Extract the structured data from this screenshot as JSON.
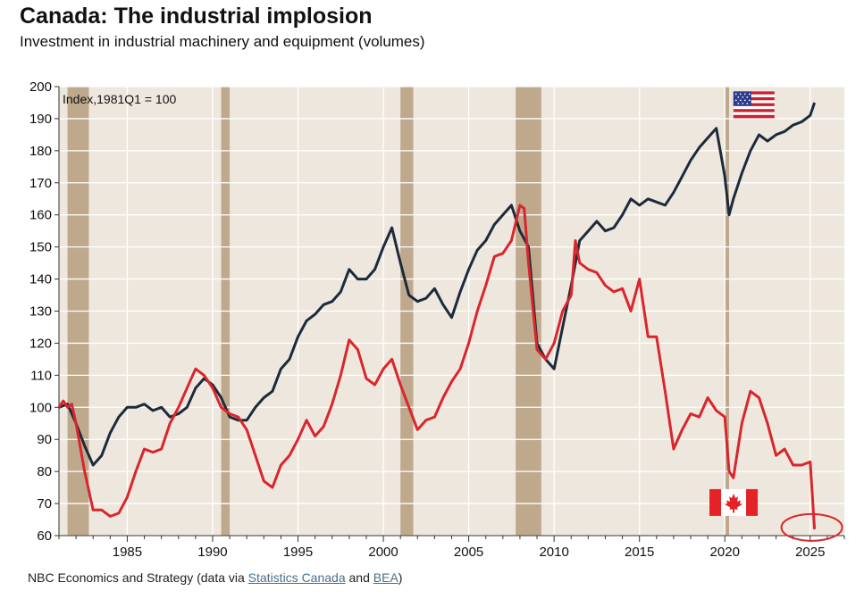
{
  "header": {
    "title": "Canada: The industrial implosion",
    "subtitle": "Investment in industrial machinery and equipment (volumes)"
  },
  "source": {
    "prefix": "NBC Economics and Strategy (data via ",
    "link1": "Statistics Canada",
    "middle": " and ",
    "link2": "BEA",
    "suffix": ")"
  },
  "colors": {
    "plot_background": "#eee7de",
    "recession_band": "#bfa98d",
    "grid": "#ffffff",
    "us_line": "#1d2a3a",
    "canada_line": "#d9262c",
    "highlight_circle": "#d9262c"
  },
  "icons": {
    "us": "us-flag-icon",
    "canada": "canada-flag-icon"
  },
  "chart_data": {
    "type": "line",
    "index_label": "Index,1981Q1 = 100",
    "xlabel": "",
    "ylabel": "",
    "xlim": [
      1981,
      2027
    ],
    "ylim": [
      60,
      200
    ],
    "x_ticks": [
      "1985",
      "1990",
      "1995",
      "2000",
      "2005",
      "2010",
      "2015",
      "2020",
      "2025"
    ],
    "y_ticks": [
      "60",
      "70",
      "80",
      "90",
      "100",
      "110",
      "120",
      "130",
      "140",
      "150",
      "160",
      "170",
      "180",
      "190",
      "200"
    ],
    "grid": true,
    "legend": "flags next to series (US top-right, Canada bottom-right)",
    "recessions": [
      [
        1981.5,
        1982.75
      ],
      [
        1990.5,
        1991.0
      ],
      [
        2001.0,
        2001.75
      ],
      [
        2007.75,
        2009.25
      ],
      [
        2020.0,
        2020.25
      ]
    ],
    "series": [
      {
        "id": "us",
        "x": [
          1981.0,
          1981.5,
          1982.0,
          1982.5,
          1983.0,
          1983.5,
          1984.0,
          1984.5,
          1985.0,
          1985.5,
          1986.0,
          1986.5,
          1987.0,
          1987.5,
          1988.0,
          1988.5,
          1989.0,
          1989.5,
          1990.0,
          1990.5,
          1991.0,
          1991.5,
          1992.0,
          1992.5,
          1993.0,
          1993.5,
          1994.0,
          1994.5,
          1995.0,
          1995.5,
          1996.0,
          1996.5,
          1997.0,
          1997.5,
          1998.0,
          1998.5,
          1999.0,
          1999.5,
          2000.0,
          2000.5,
          2001.0,
          2001.5,
          2002.0,
          2002.5,
          2003.0,
          2003.5,
          2004.0,
          2004.5,
          2005.0,
          2005.5,
          2006.0,
          2006.5,
          2007.0,
          2007.5,
          2008.0,
          2008.5,
          2009.0,
          2009.5,
          2010.0,
          2010.5,
          2011.0,
          2011.5,
          2012.0,
          2012.5,
          2013.0,
          2013.5,
          2014.0,
          2014.5,
          2015.0,
          2015.5,
          2016.0,
          2016.5,
          2017.0,
          2017.5,
          2018.0,
          2018.5,
          2019.0,
          2019.5,
          2020.0,
          2020.25,
          2020.5,
          2021.0,
          2021.5,
          2022.0,
          2022.5,
          2023.0,
          2023.5,
          2024.0,
          2024.5,
          2025.0,
          2025.25
        ],
        "y": [
          100,
          101,
          95,
          88,
          82,
          85,
          92,
          97,
          100,
          100,
          101,
          99,
          100,
          97,
          98,
          100,
          106,
          109,
          107,
          103,
          97,
          96,
          96,
          100,
          103,
          105,
          112,
          115,
          122,
          127,
          129,
          132,
          133,
          136,
          143,
          140,
          140,
          143,
          150,
          156,
          145,
          135,
          133,
          134,
          137,
          132,
          128,
          136,
          143,
          149,
          152,
          157,
          160,
          163,
          155,
          150,
          120,
          115,
          112,
          125,
          138,
          152,
          155,
          158,
          155,
          156,
          160,
          165,
          163,
          165,
          164,
          163,
          167,
          172,
          177,
          181,
          184,
          187,
          172,
          160,
          165,
          173,
          180,
          185,
          183,
          185,
          186,
          188,
          189,
          191,
          195
        ]
      },
      {
        "id": "canada",
        "x": [
          1981.0,
          1981.25,
          1981.5,
          1981.75,
          1982.0,
          1982.5,
          1983.0,
          1983.5,
          1984.0,
          1984.5,
          1985.0,
          1985.5,
          1986.0,
          1986.5,
          1987.0,
          1987.5,
          1988.0,
          1988.5,
          1989.0,
          1989.5,
          1990.0,
          1990.5,
          1991.0,
          1991.5,
          1992.0,
          1992.5,
          1993.0,
          1993.5,
          1994.0,
          1994.5,
          1995.0,
          1995.5,
          1996.0,
          1996.5,
          1997.0,
          1997.5,
          1998.0,
          1998.5,
          1999.0,
          1999.5,
          2000.0,
          2000.5,
          2001.0,
          2001.5,
          2002.0,
          2002.5,
          2003.0,
          2003.5,
          2004.0,
          2004.5,
          2005.0,
          2005.5,
          2006.0,
          2006.5,
          2007.0,
          2007.5,
          2008.0,
          2008.25,
          2008.5,
          2009.0,
          2009.5,
          2010.0,
          2010.5,
          2011.0,
          2011.25,
          2011.5,
          2012.0,
          2012.5,
          2013.0,
          2013.5,
          2014.0,
          2014.5,
          2015.0,
          2015.5,
          2016.0,
          2016.5,
          2017.0,
          2017.5,
          2018.0,
          2018.5,
          2019.0,
          2019.5,
          2020.0,
          2020.25,
          2020.5,
          2021.0,
          2021.5,
          2022.0,
          2022.5,
          2023.0,
          2023.5,
          2024.0,
          2024.5,
          2025.0,
          2025.25
        ],
        "y": [
          100,
          102,
          100,
          101,
          95,
          80,
          68,
          68,
          66,
          67,
          72,
          80,
          87,
          86,
          87,
          95,
          100,
          106,
          112,
          110,
          106,
          100,
          98,
          97,
          93,
          85,
          77,
          75,
          82,
          85,
          90,
          96,
          91,
          94,
          101,
          110,
          121,
          118,
          109,
          107,
          112,
          115,
          107,
          100,
          93,
          96,
          97,
          103,
          108,
          112,
          120,
          130,
          138,
          147,
          148,
          152,
          163,
          162,
          145,
          118,
          115,
          120,
          130,
          135,
          152,
          145,
          143,
          142,
          138,
          136,
          137,
          130,
          140,
          122,
          122,
          105,
          87,
          93,
          98,
          97,
          103,
          99,
          97,
          80,
          78,
          95,
          105,
          103,
          95,
          85,
          87,
          82,
          82,
          83,
          62
        ]
      }
    ]
  }
}
